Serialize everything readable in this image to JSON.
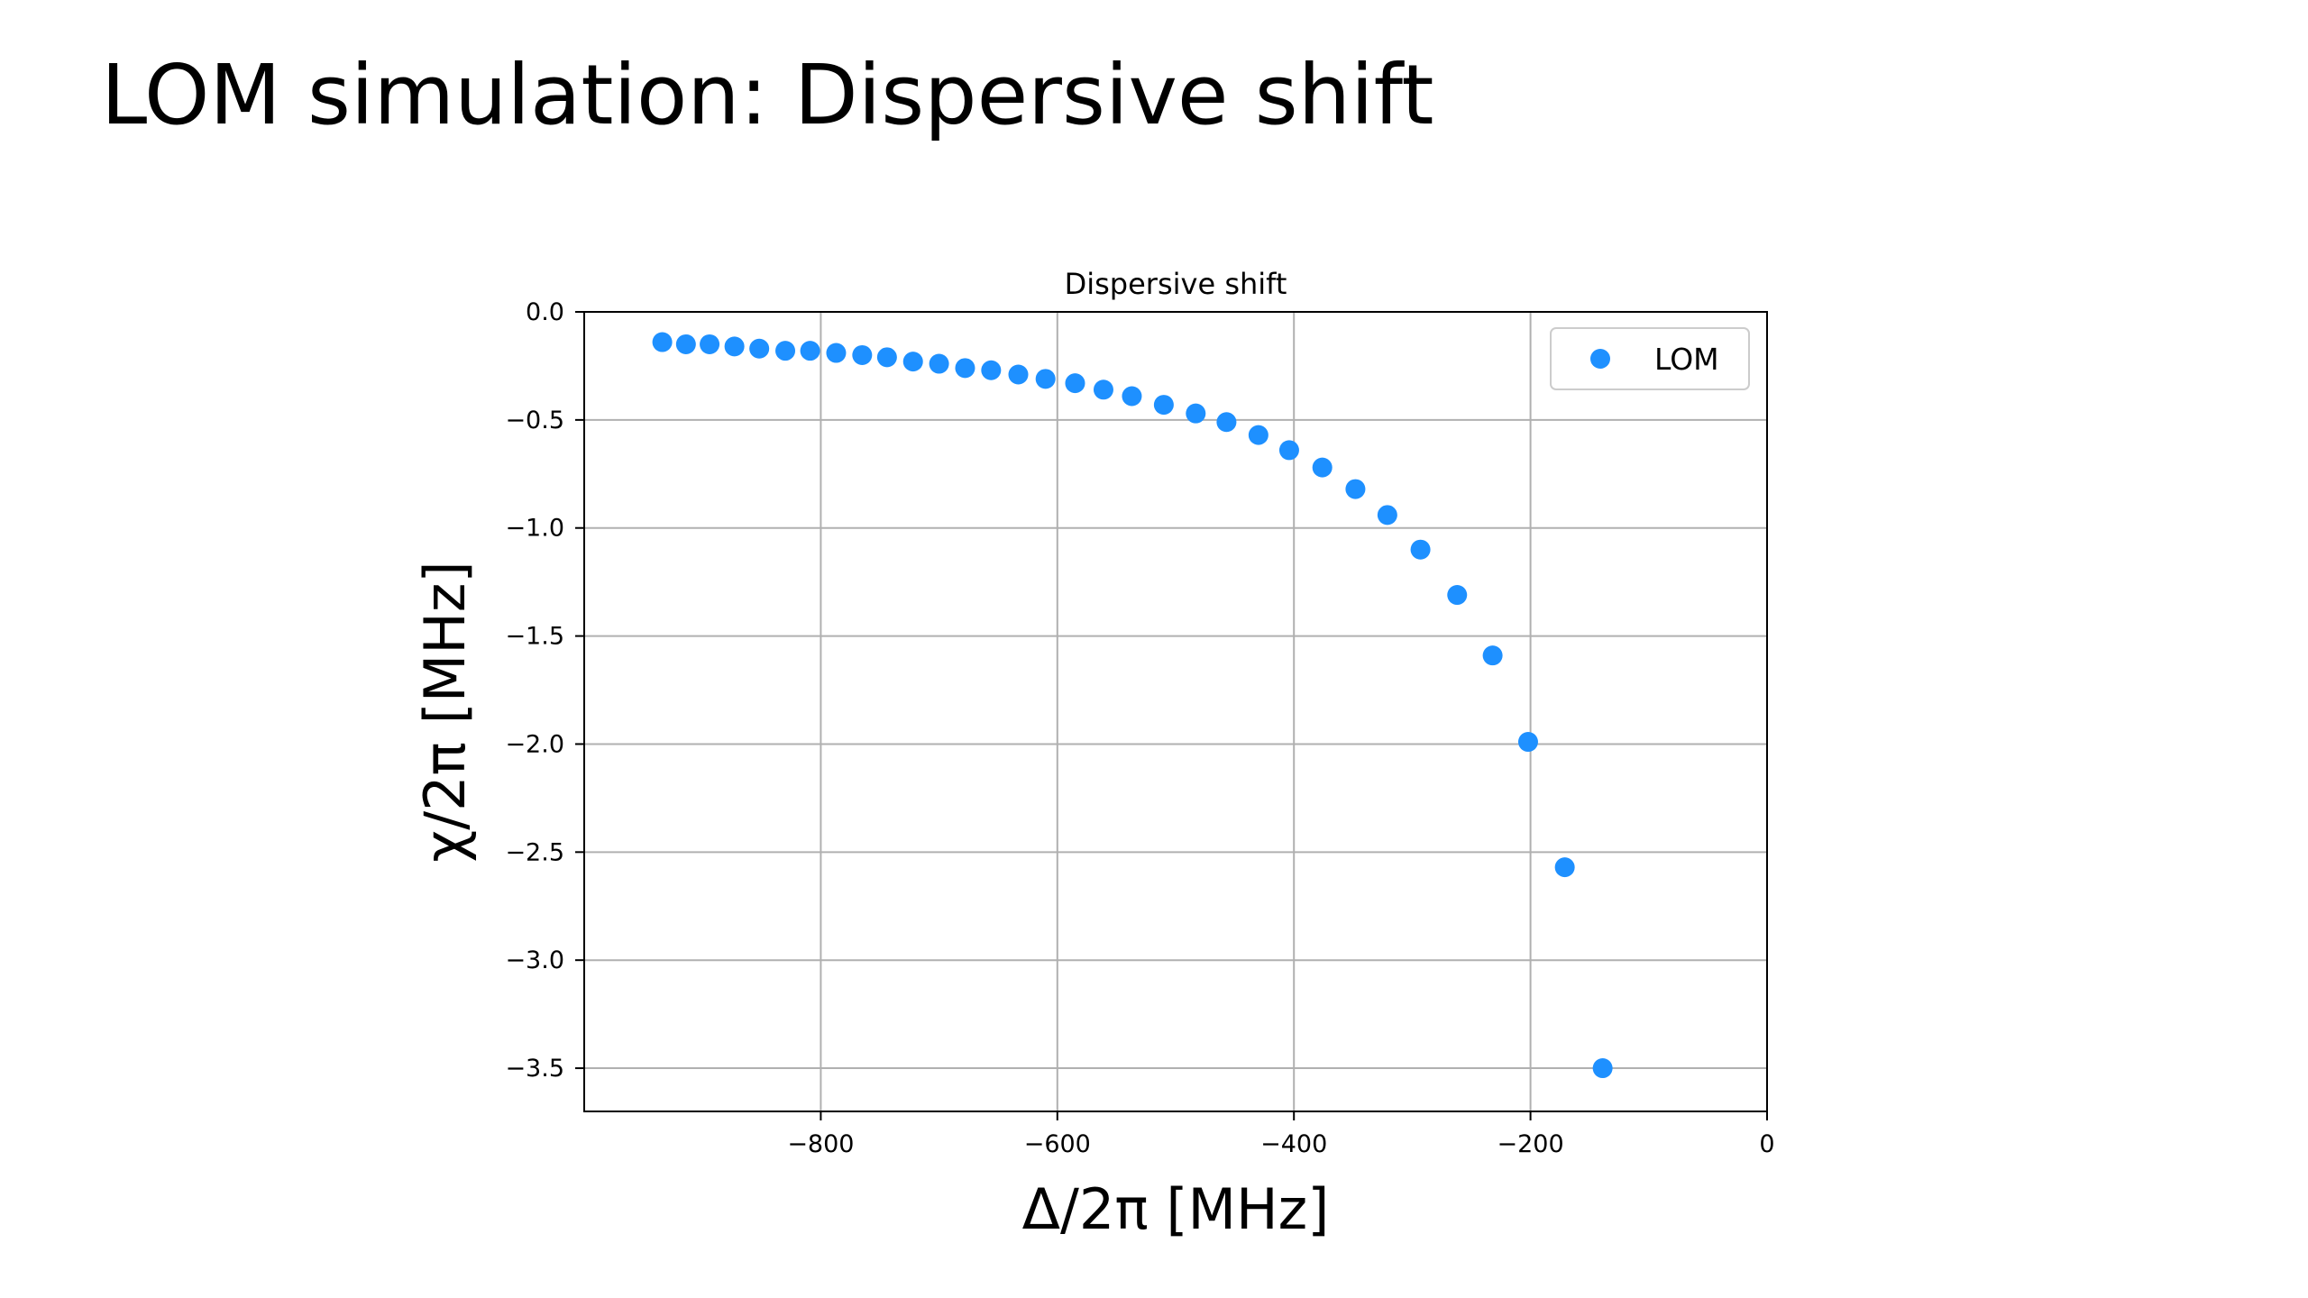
{
  "slide": {
    "title": "LOM simulation: Dispersive shift"
  },
  "chart_data": {
    "type": "scatter",
    "title": "Dispersive shift",
    "xlabel": "Δ/2π [MHz]",
    "ylabel": "χ/2π [MHz]",
    "xlim": [
      -1000,
      0
    ],
    "ylim": [
      -3.7,
      0.0
    ],
    "x_ticks": [
      -800,
      -600,
      -400,
      -200,
      0
    ],
    "x_tick_labels": [
      "−800",
      "−600",
      "−400",
      "−200",
      "0"
    ],
    "y_ticks": [
      0.0,
      -0.5,
      -1.0,
      -1.5,
      -2.0,
      -2.5,
      -3.0,
      -3.5
    ],
    "y_tick_labels": [
      "0.0",
      "−0.5",
      "−1.0",
      "−1.5",
      "−2.0",
      "−2.5",
      "−3.0",
      "−3.5"
    ],
    "grid": true,
    "legend_position": "top-right",
    "color": "#1E90FF",
    "series": [
      {
        "name": "LOM",
        "x": [
          -934,
          -914,
          -894,
          -873,
          -852,
          -830,
          -809,
          -787,
          -765,
          -744,
          -722,
          -700,
          -678,
          -656,
          -633,
          -610,
          -585,
          -561,
          -537,
          -510,
          -483,
          -457,
          -430,
          -404,
          -376,
          -348,
          -321,
          -293,
          -262,
          -232,
          -202,
          -171,
          -139
        ],
        "y": [
          -0.14,
          -0.15,
          -0.15,
          -0.16,
          -0.17,
          -0.18,
          -0.18,
          -0.19,
          -0.2,
          -0.21,
          -0.23,
          -0.24,
          -0.26,
          -0.27,
          -0.29,
          -0.31,
          -0.33,
          -0.36,
          -0.39,
          -0.43,
          -0.47,
          -0.51,
          -0.57,
          -0.64,
          -0.72,
          -0.82,
          -0.94,
          -1.1,
          -1.31,
          -1.59,
          -1.99,
          -2.57,
          -3.5
        ]
      }
    ]
  }
}
